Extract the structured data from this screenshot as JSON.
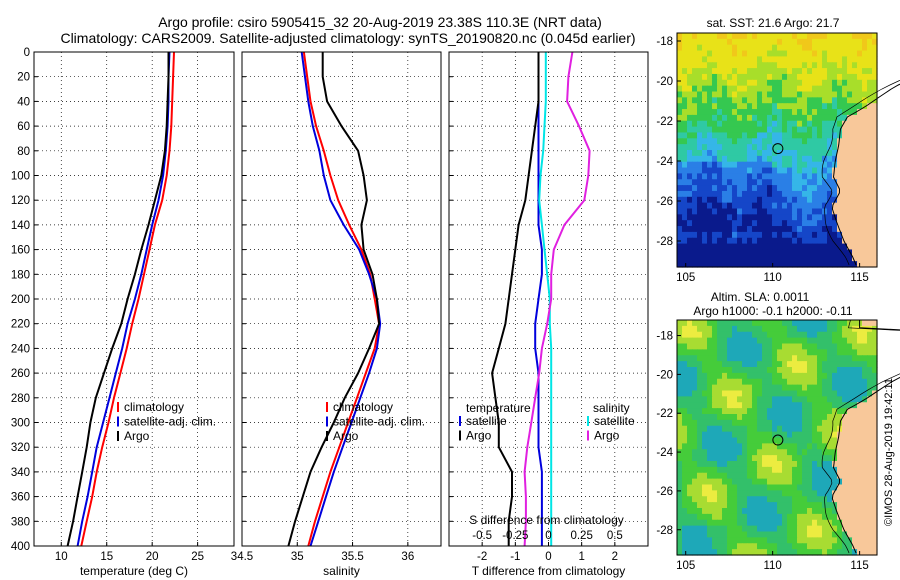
{
  "title_line1": "Argo profile: csiro 5905415_32 20-Aug-2019 23.38S 110.3E (NRT data)",
  "title_line2": "Climatology: CARS2009. Satellite-adjusted climatology: synTS_20190820.nc (0.045d earlier)",
  "copyright": "©IMOS 28-Aug-2019 19:42:11",
  "colors": {
    "climatology": "#ff0000",
    "satellite": "#0000dd",
    "argo": "#000000",
    "sat_diff": "#00e5e5",
    "sal_diff": "#e020e0",
    "land": "#f8c89a"
  },
  "depth_ticks": [
    0,
    20,
    40,
    60,
    80,
    100,
    120,
    140,
    160,
    180,
    200,
    220,
    240,
    260,
    280,
    300,
    320,
    340,
    360,
    380,
    400
  ],
  "chart_data": [
    {
      "type": "line",
      "name": "temperature",
      "xlabel": "temperature (deg C)",
      "ylabel": "depth",
      "xlim": [
        7,
        29
      ],
      "ylim": [
        400,
        0
      ],
      "xticks": [
        10,
        15,
        20,
        25
      ],
      "xtick_labels": [
        "10",
        "15",
        "20",
        "25"
      ],
      "legend": [
        "climatology",
        "satellite-adj. clim.",
        "Argo"
      ],
      "depth": [
        0,
        20,
        40,
        60,
        80,
        100,
        120,
        140,
        160,
        180,
        200,
        220,
        240,
        260,
        280,
        300,
        320,
        340,
        360,
        380,
        400
      ],
      "series": [
        {
          "name": "climatology",
          "values": [
            22.4,
            22.3,
            22.2,
            22.1,
            21.9,
            21.6,
            21.1,
            20.3,
            19.7,
            19.1,
            18.5,
            17.8,
            17.2,
            16.5,
            15.8,
            15.2,
            14.5,
            13.9,
            13.4,
            12.8,
            12.2
          ]
        },
        {
          "name": "satellite-adj. clim.",
          "values": [
            21.9,
            21.8,
            21.8,
            21.7,
            21.5,
            21.2,
            20.7,
            20.0,
            19.4,
            18.8,
            18.1,
            17.3,
            16.7,
            16.0,
            15.3,
            14.6,
            13.9,
            13.4,
            12.9,
            12.3,
            11.8
          ]
        },
        {
          "name": "Argo",
          "values": [
            21.8,
            21.8,
            21.7,
            21.6,
            21.4,
            21.0,
            20.3,
            19.6,
            18.8,
            18.1,
            17.3,
            16.6,
            15.6,
            14.7,
            13.8,
            13.2,
            12.8,
            12.3,
            11.8,
            11.3,
            10.7
          ]
        }
      ]
    },
    {
      "type": "line",
      "name": "salinity",
      "xlabel": "salinity",
      "ylabel": "depth",
      "xlim": [
        34.5,
        36.3
      ],
      "ylim": [
        400,
        0
      ],
      "xticks": [
        34.5,
        35,
        35.5,
        36
      ],
      "xtick_labels": [
        "34.5",
        "35",
        "35.5",
        "36"
      ],
      "legend": [
        "climatology",
        "satellite-adj. clim.",
        "Argo"
      ],
      "depth": [
        0,
        20,
        40,
        60,
        80,
        100,
        120,
        140,
        160,
        180,
        200,
        220,
        240,
        260,
        280,
        300,
        320,
        340,
        360,
        380,
        400
      ],
      "series": [
        {
          "name": "climatology",
          "values": [
            35.06,
            35.09,
            35.12,
            35.17,
            35.24,
            35.3,
            35.37,
            35.47,
            35.58,
            35.66,
            35.7,
            35.74,
            35.7,
            35.62,
            35.54,
            35.46,
            35.38,
            35.3,
            35.23,
            35.16,
            35.1
          ]
        },
        {
          "name": "satellite-adj. clim.",
          "values": [
            35.04,
            35.07,
            35.1,
            35.14,
            35.2,
            35.24,
            35.3,
            35.42,
            35.56,
            35.65,
            35.72,
            35.75,
            35.72,
            35.65,
            35.57,
            35.49,
            35.41,
            35.33,
            35.26,
            35.19,
            35.12
          ]
        },
        {
          "name": "Argo",
          "values": [
            35.23,
            35.23,
            35.27,
            35.4,
            35.55,
            35.6,
            35.63,
            35.58,
            35.6,
            35.68,
            35.72,
            35.74,
            35.65,
            35.55,
            35.43,
            35.33,
            35.22,
            35.12,
            35.05,
            34.98,
            34.92
          ]
        }
      ]
    },
    {
      "type": "line",
      "name": "difference",
      "xlabel": "T difference from climatology",
      "top_axis_label": "S difference from climatology",
      "ylabel": "depth",
      "xlim": [
        -3,
        3
      ],
      "ylim": [
        400,
        0
      ],
      "xticks": [
        -2,
        -1,
        0,
        1,
        2
      ],
      "xtick_labels": [
        "-2",
        "-1",
        "0",
        "1",
        "2"
      ],
      "top_ticks": [
        -0.5,
        -0.25,
        0,
        0.25,
        0.5
      ],
      "top_tick_labels": [
        "-0.5",
        "-0.25",
        "0",
        "0.25",
        "0.5"
      ],
      "top_tick_scale": 4,
      "legend_temperature_title": "temperature",
      "legend_salinity_title": "salinity",
      "legend_temperature": [
        "satellite",
        "Argo"
      ],
      "legend_salinity": [
        "satellite",
        "Argo"
      ],
      "depth": [
        0,
        20,
        40,
        60,
        80,
        100,
        120,
        140,
        160,
        180,
        200,
        220,
        240,
        260,
        280,
        300,
        320,
        340,
        360,
        380,
        400
      ],
      "series": [
        {
          "name": "T satellite",
          "values": [
            -0.3,
            -0.3,
            -0.3,
            -0.3,
            -0.3,
            -0.3,
            -0.3,
            -0.3,
            -0.2,
            -0.2,
            -0.3,
            -0.4,
            -0.4,
            -0.3,
            -0.3,
            -0.3,
            -0.3,
            -0.2,
            -0.2,
            -0.2,
            -0.2
          ]
        },
        {
          "name": "T Argo",
          "values": [
            -0.3,
            -0.3,
            -0.3,
            -0.4,
            -0.5,
            -0.6,
            -0.7,
            -0.9,
            -1.0,
            -1.1,
            -1.2,
            -1.3,
            -1.5,
            -1.7,
            -1.6,
            -1.5,
            -1.5,
            -1.1,
            -1.1,
            -1.2,
            -1.2
          ]
        },
        {
          "name": "S satellite",
          "values": [
            -0.02,
            -0.02,
            -0.02,
            -0.03,
            -0.04,
            -0.06,
            -0.07,
            -0.05,
            -0.03,
            -0.01,
            0.01,
            0.01,
            0.02,
            0.02,
            0.02,
            0.02,
            0.02,
            0.02,
            0.02,
            0.02,
            0.02
          ]
        },
        {
          "name": "S Argo",
          "values": [
            0.18,
            0.15,
            0.14,
            0.23,
            0.31,
            0.3,
            0.27,
            0.12,
            0.04,
            0.02,
            0.02,
            -0.01,
            -0.05,
            -0.07,
            -0.1,
            -0.13,
            -0.16,
            -0.18,
            -0.17,
            -0.17,
            -0.18
          ]
        }
      ]
    },
    {
      "type": "heatmap",
      "name": "sst-map",
      "title": "sat. SST: 21.6 Argo: 21.7",
      "xlim": [
        104.5,
        116
      ],
      "ylim": [
        -29.3,
        -17.6
      ],
      "xticks": [
        105,
        110,
        115
      ],
      "yticks": [
        -18,
        -20,
        -22,
        -24,
        -26,
        -28
      ],
      "ytick_labels": [
        "-18",
        "-20",
        "-22",
        "-24",
        "-26",
        "-28"
      ],
      "marker": [
        110.3,
        -23.38
      ]
    },
    {
      "type": "heatmap",
      "name": "sla-map",
      "title_line1": "Altim. SLA: 0.0011",
      "title_line2": "Argo h1000: -0.1 h2000: -0.11",
      "xlim": [
        104.5,
        116
      ],
      "ylim": [
        -29.3,
        -17.2
      ],
      "xticks": [
        105,
        110,
        115
      ],
      "yticks": [
        -18,
        -20,
        -22,
        -24,
        -26,
        -28
      ],
      "ytick_labels": [
        "-18",
        "-20",
        "-22",
        "-24",
        "-26",
        "-28"
      ],
      "marker": [
        110.3,
        -23.38
      ]
    }
  ]
}
